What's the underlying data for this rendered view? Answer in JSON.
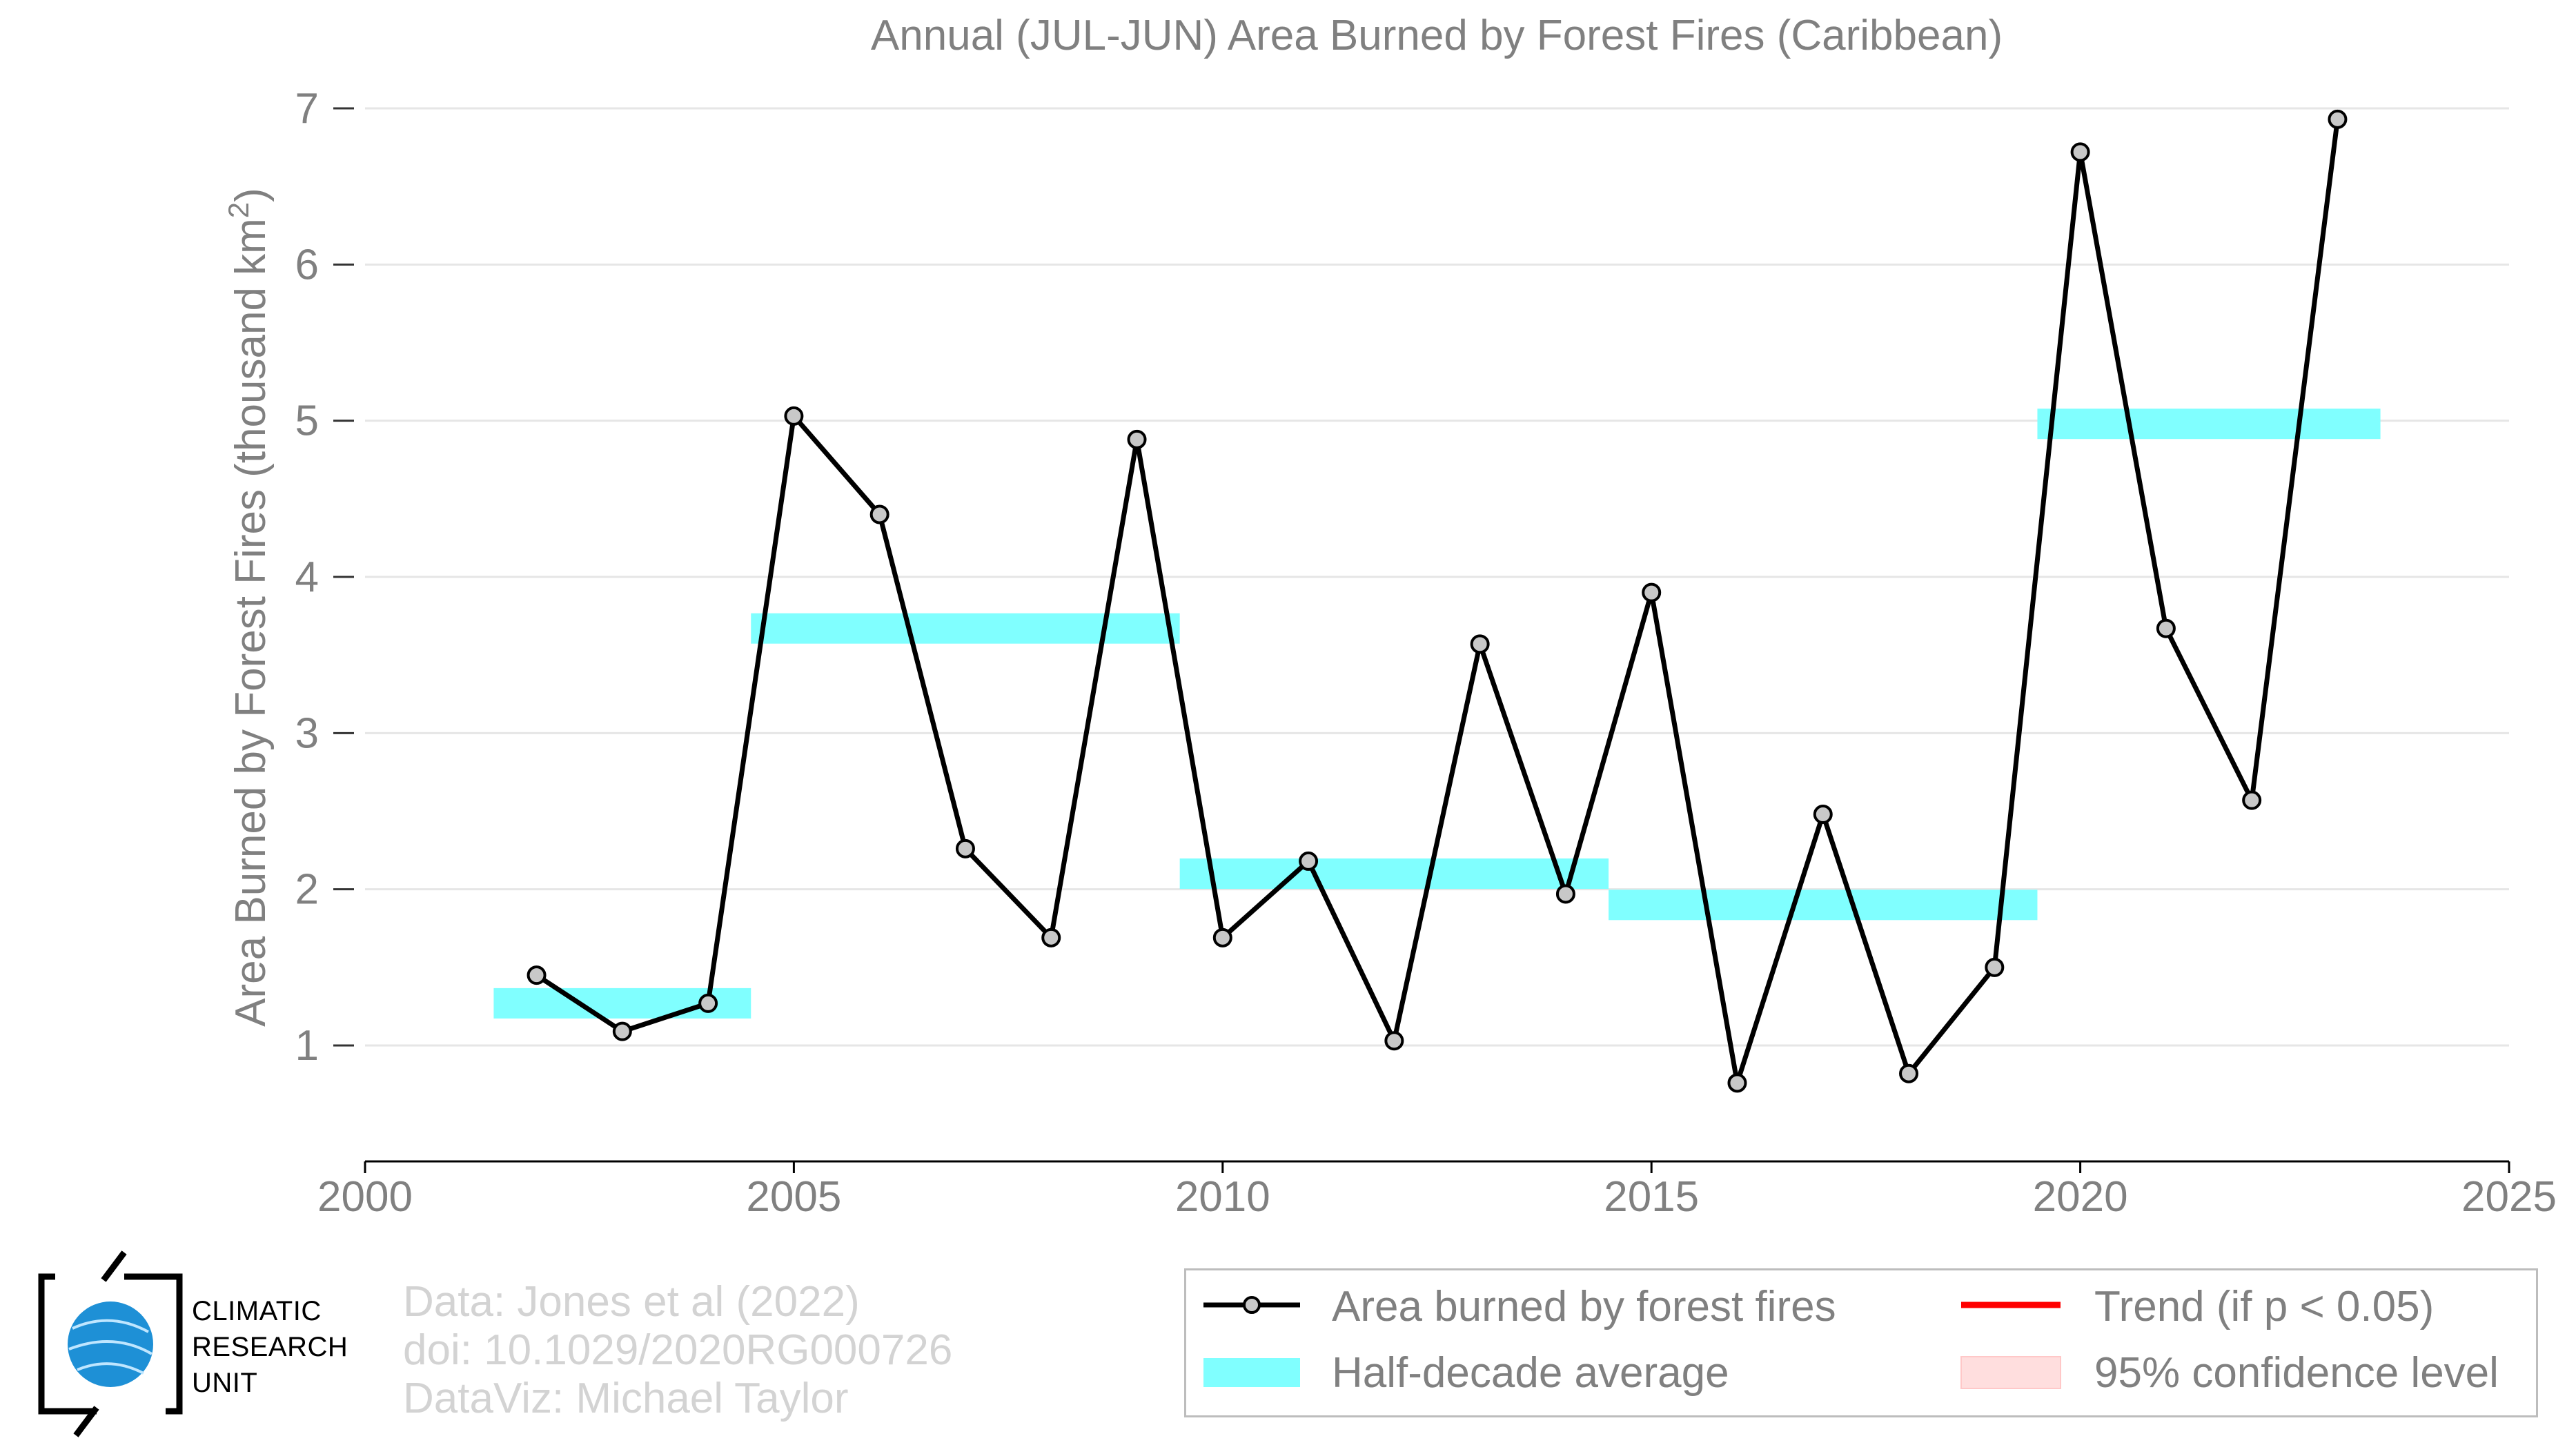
{
  "chart_data": {
    "type": "line",
    "title": "Annual (JUL-JUN) Area Burned by Forest Fires (Caribbean)",
    "ylabel_main": "Area Burned by Forest Fires (thousand km",
    "ylabel_sup": "2",
    "ylabel_close": ")",
    "xlim": [
      2000,
      2025
    ],
    "ylim": [
      0.3,
      7
    ],
    "x_ticks": [
      "2000",
      "2005",
      "2010",
      "2015",
      "2020",
      "2025"
    ],
    "y_ticks": [
      "1",
      "2",
      "3",
      "4",
      "5",
      "6",
      "7"
    ],
    "grid": "horizontal",
    "legend_position": "bottom-right",
    "series": [
      {
        "name": "Area burned by forest fires",
        "color": "#000000",
        "marker_color": "#c8c8c8",
        "x": [
          2002,
          2003,
          2004,
          2005,
          2006,
          2007,
          2008,
          2009,
          2010,
          2011,
          2012,
          2013,
          2014,
          2015,
          2016,
          2017,
          2018,
          2019,
          2020,
          2021,
          2022,
          2023
        ],
        "y": [
          1.45,
          1.09,
          1.27,
          5.03,
          4.4,
          2.26,
          1.69,
          4.88,
          1.69,
          2.18,
          1.03,
          3.57,
          1.97,
          3.9,
          0.76,
          2.48,
          0.82,
          1.5,
          6.72,
          3.67,
          2.57,
          6.93
        ]
      }
    ],
    "half_decade": {
      "name": "Half-decade average",
      "color": "#80ffff",
      "segments": [
        {
          "x0": 2001.5,
          "x1": 2004.5,
          "y": 1.27
        },
        {
          "x0": 2004.5,
          "x1": 2009.5,
          "y": 3.67
        },
        {
          "x0": 2009.5,
          "x1": 2014.5,
          "y": 2.1
        },
        {
          "x0": 2014.5,
          "x1": 2019.5,
          "y": 1.9
        },
        {
          "x0": 2019.5,
          "x1": 2023.5,
          "y": 4.98
        }
      ]
    },
    "trend": {
      "name": "Trend (if p < 0.05)",
      "color": "#ff0000"
    },
    "confidence": {
      "name": "95% confidence level",
      "color": "#ffdede"
    }
  },
  "credits": {
    "data": "Data: Jones et al (2022)",
    "doi": "doi: 10.1029/2020RG000726",
    "dataviz": "DataViz: Michael Taylor"
  },
  "logo": {
    "line1": "CLIMATIC",
    "line2": "RESEARCH",
    "line3": "UNIT",
    "icon": "globe-icon",
    "color": "#1e90d6"
  },
  "legend": {
    "line_label": "Area burned by forest fires",
    "avg_label": "Half-decade average",
    "trend_label": "Trend (if p < 0.05)",
    "ci_label": "95% confidence level"
  }
}
